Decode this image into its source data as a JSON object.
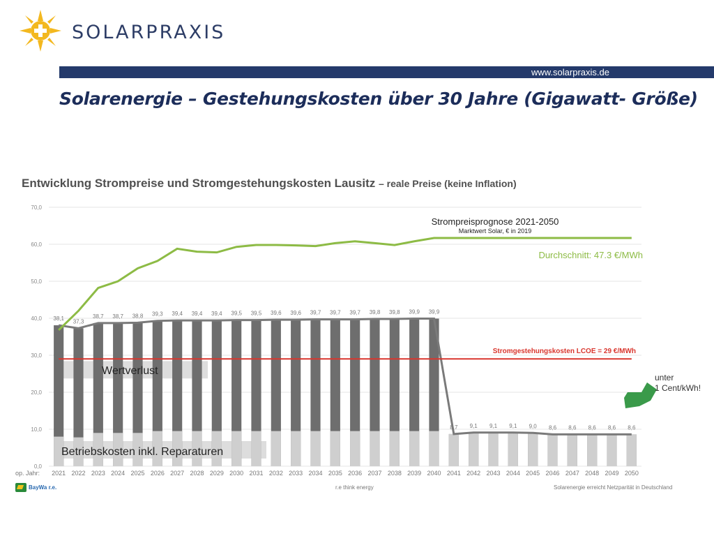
{
  "header": {
    "brand": "SOLARPRAXIS",
    "url": "www.solarpraxis.de",
    "title": "Solarenergie – Gestehungskosten über 30 Jahre (Gigawatt- Größe)"
  },
  "chart_heading": {
    "main": "Entwicklung Strompreise und Stromgestehungskosten Lausitz",
    "sub": "– reale Preise (keine Inflation)"
  },
  "footer": {
    "brand": "BayWa r.e.",
    "slogan": "r.e think energy",
    "note": "Solarenergie erreicht Netzparität in Deutschland"
  },
  "colors": {
    "accent_navy": "#243a6b",
    "bar_dark": "#6e6e6e",
    "bar_light": "#cfcfcf",
    "price_line": "#8dbb45",
    "lcoe_line": "#d9362e",
    "arrow": "#3a9a4a"
  },
  "chart_data": {
    "type": "bar",
    "xlabel_prefix": "op. Jahr:",
    "categories": [
      "2021",
      "2022",
      "2023",
      "2024",
      "2025",
      "2026",
      "2027",
      "2028",
      "2029",
      "2030",
      "2031",
      "2032",
      "2033",
      "2034",
      "2035",
      "2036",
      "2037",
      "2038",
      "2039",
      "2040",
      "2041",
      "2042",
      "2043",
      "2044",
      "2045",
      "2046",
      "2047",
      "2048",
      "2049",
      "2050"
    ],
    "ylim": [
      0,
      70
    ],
    "yticks": [
      "0,0",
      "10,0",
      "20,0",
      "30,0",
      "40,0",
      "50,0",
      "60,0",
      "70,0"
    ],
    "grid": true,
    "bar_labels": [
      "38,1",
      "37,3",
      "38,7",
      "38,7",
      "38,8",
      "39,3",
      "39,4",
      "39,4",
      "39,4",
      "39,5",
      "39,5",
      "39,6",
      "39,6",
      "39,7",
      "39,7",
      "39,7",
      "39,8",
      "39,8",
      "39,9",
      "39,9",
      "8,7",
      "9,1",
      "9,1",
      "9,1",
      "9,0",
      "8,6",
      "8,6",
      "8,6",
      "8,6",
      "8,6"
    ],
    "series": [
      {
        "values": [
          38.1,
          37.3,
          38.7,
          38.7,
          38.8,
          39.3,
          39.4,
          39.4,
          39.4,
          39.5,
          39.5,
          39.6,
          39.6,
          39.7,
          39.7,
          39.7,
          39.8,
          39.8,
          39.9,
          39.9,
          8.7,
          9.1,
          9.1,
          9.1,
          9.0,
          8.6,
          8.6,
          8.6,
          8.6,
          8.6
        ]
      },
      {
        "values": [
          8.0,
          7.8,
          9.0,
          9.0,
          9.0,
          9.5,
          9.5,
          9.5,
          9.5,
          9.5,
          9.5,
          9.5,
          9.5,
          9.5,
          9.5,
          9.5,
          9.5,
          9.5,
          9.5,
          9.5,
          8.7,
          9.1,
          9.1,
          9.1,
          9.0,
          8.6,
          8.6,
          8.6,
          8.6,
          8.6
        ]
      },
      {
        "name": "Strompreisprognose 2021-2050",
        "values": [
          36.8,
          42.0,
          48.2,
          50.0,
          53.5,
          55.5,
          58.8,
          58.0,
          57.8,
          59.3,
          59.8,
          59.8,
          59.7,
          59.5,
          60.3,
          60.8,
          60.3,
          59.8,
          60.8,
          61.7,
          61.7,
          61.7,
          61.7,
          61.7,
          61.7,
          61.7,
          61.7,
          61.7,
          61.7,
          61.7
        ]
      },
      {
        "name": "Stromgestehungskosten LCOE = 29 €/MWh",
        "values": [
          29,
          29,
          29,
          29,
          29,
          29,
          29,
          29,
          29,
          29,
          29,
          29,
          29,
          29,
          29,
          29,
          29,
          29,
          29,
          29,
          29,
          29,
          29,
          29,
          29,
          29,
          29,
          29,
          29,
          29
        ]
      }
    ],
    "annotations": {
      "price_title": "Strompreisprognose 2021-2050",
      "price_subtitle": "Marktwert Solar,  € in 2019",
      "average": "Durchschnitt: 47.3 €/MWh",
      "lcoe": "Stromgestehungskosten LCOE = 29 €/MWh",
      "wertverlust": "Wertverlust",
      "betriebskosten": "Betriebskosten inkl. Reparaturen",
      "unter_line1": "unter",
      "unter_line2": "1 Cent/kWh!"
    }
  }
}
